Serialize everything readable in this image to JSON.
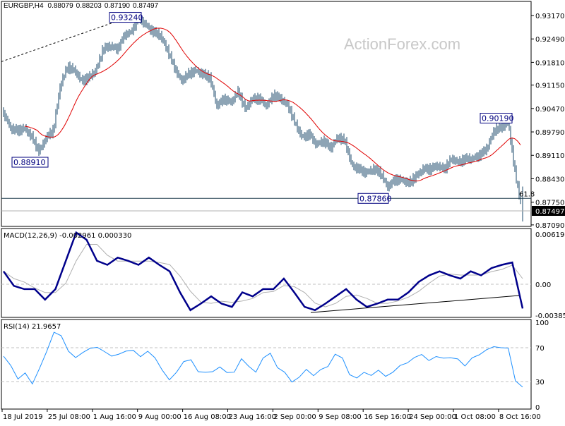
{
  "chart_data": [
    {
      "type": "bar",
      "panel": "price",
      "header": {
        "symbol": "EURGBP,H4",
        "open": "0.88079",
        "high": "0.88203",
        "low": "0.87190",
        "close": "0.87497"
      },
      "watermark": "ActionForex.com",
      "ylim": [
        0.8705,
        0.9335
      ],
      "y_ticks": [
        "0.93170",
        "0.92490",
        "0.91810",
        "0.91150",
        "0.90470",
        "0.89790",
        "0.89110",
        "0.88430",
        "0.87750",
        "0.87090"
      ],
      "current_price_label": "0.87497",
      "close_samples": [
        0.9034,
        0.8989,
        0.8983,
        0.8989,
        0.8963,
        0.8922,
        0.8963,
        0.8983,
        0.9116,
        0.9168,
        0.9157,
        0.9127,
        0.9137,
        0.9157,
        0.9219,
        0.9229,
        0.9219,
        0.926,
        0.927,
        0.9311,
        0.929,
        0.927,
        0.926,
        0.9219,
        0.9168,
        0.9127,
        0.9147,
        0.9157,
        0.9147,
        0.9137,
        0.9055,
        0.9075,
        0.9065,
        0.9096,
        0.9045,
        0.9075,
        0.9075,
        0.9055,
        0.9086,
        0.9075,
        0.9055,
        0.9004,
        0.8963,
        0.8973,
        0.8942,
        0.8953,
        0.8932,
        0.8963,
        0.8953,
        0.8881,
        0.8871,
        0.886,
        0.8871,
        0.886,
        0.8819,
        0.884,
        0.884,
        0.883,
        0.885,
        0.8871,
        0.8871,
        0.8881,
        0.8871,
        0.8901,
        0.8891,
        0.8901,
        0.8901,
        0.8912,
        0.8932,
        0.8983,
        0.8993,
        0.9004,
        0.885,
        0.8748
      ],
      "annotations": [
        {
          "label": "0.93240",
          "price": 0.9324
        },
        {
          "label": "0.88910",
          "price": 0.8891
        },
        {
          "label": "0.87860",
          "price": 0.8786
        },
        {
          "label": "0.90190",
          "price": 0.9019
        }
      ],
      "fib_label": "61.8",
      "horizontal_levels": [
        0.8786,
        0.87497
      ],
      "trendline": [
        0.9183,
        0.9325
      ],
      "colors": {
        "bars": "#1b4a6b",
        "ma": "#e00000",
        "trendline": "#000000"
      }
    },
    {
      "type": "line",
      "panel": "macd",
      "label": "MACD(12,26,9) -0.002961 0.000330",
      "ylim": [
        -0.0043,
        0.0068
      ],
      "y_ticks": [
        "0.006195",
        "0.00",
        "-0.003851"
      ],
      "macd_samples": [
        0.0016,
        -0.0002,
        -0.0006,
        -0.0006,
        -0.0019,
        -0.0006,
        0.0029,
        0.0064,
        0.0055,
        0.0029,
        0.0024,
        0.0033,
        0.0029,
        0.0024,
        0.0033,
        0.0024,
        0.0016,
        -0.001,
        -0.0032,
        -0.0024,
        -0.0015,
        -0.0024,
        -0.0028,
        -0.001,
        -0.0015,
        -0.0006,
        -0.0006,
        0.0007,
        -0.001,
        -0.0028,
        -0.0032,
        -0.0024,
        -0.0015,
        -0.0006,
        -0.0019,
        -0.0028,
        -0.0024,
        -0.0019,
        -0.0019,
        -0.001,
        0.0003,
        0.0011,
        0.0016,
        0.0011,
        0.0007,
        0.0016,
        0.0011,
        0.002,
        0.0024,
        0.0027,
        -0.003
      ],
      "trendline": [
        -0.0035,
        -0.0014
      ],
      "colors": {
        "macd": "#00008b",
        "signal": "#b0b0b0"
      }
    },
    {
      "type": "line",
      "panel": "rsi",
      "label": "RSI(14) 21.9657",
      "ylim": [
        0,
        100
      ],
      "y_ticks": [
        "100",
        "70",
        "30",
        "0"
      ],
      "levels": [
        70,
        30
      ],
      "rsi_samples": [
        60,
        47.5,
        35,
        39,
        26.7,
        47.5,
        64,
        89,
        85,
        64,
        60,
        64,
        68,
        72.5,
        64,
        60,
        64,
        64,
        68,
        60,
        64,
        60,
        43,
        31,
        43,
        52,
        56,
        43,
        39,
        43,
        47.5,
        39,
        43,
        56,
        47.5,
        43,
        56,
        64,
        47.5,
        39,
        31,
        35,
        43,
        39,
        43,
        47.5,
        64,
        56,
        39,
        35,
        39,
        39,
        43,
        35,
        43,
        47.5,
        52,
        60,
        60,
        56,
        60,
        56,
        60,
        56,
        47.5,
        60,
        60,
        68,
        72.5,
        68,
        71,
        31,
        22
      ],
      "colors": {
        "rsi": "#1e90ff"
      }
    }
  ],
  "x_ticks": [
    "18 Jul 2019",
    "25 Jul 08:00",
    "1 Aug 16:00",
    "9 Aug 00:00",
    "16 Aug 08:00",
    "23 Aug 16:00",
    "2 Sep 00:00",
    "9 Sep 08:00",
    "16 Sep 16:00",
    "24 Sep 00:00",
    "1 Oct 08:00",
    "8 Oct 16:00"
  ]
}
